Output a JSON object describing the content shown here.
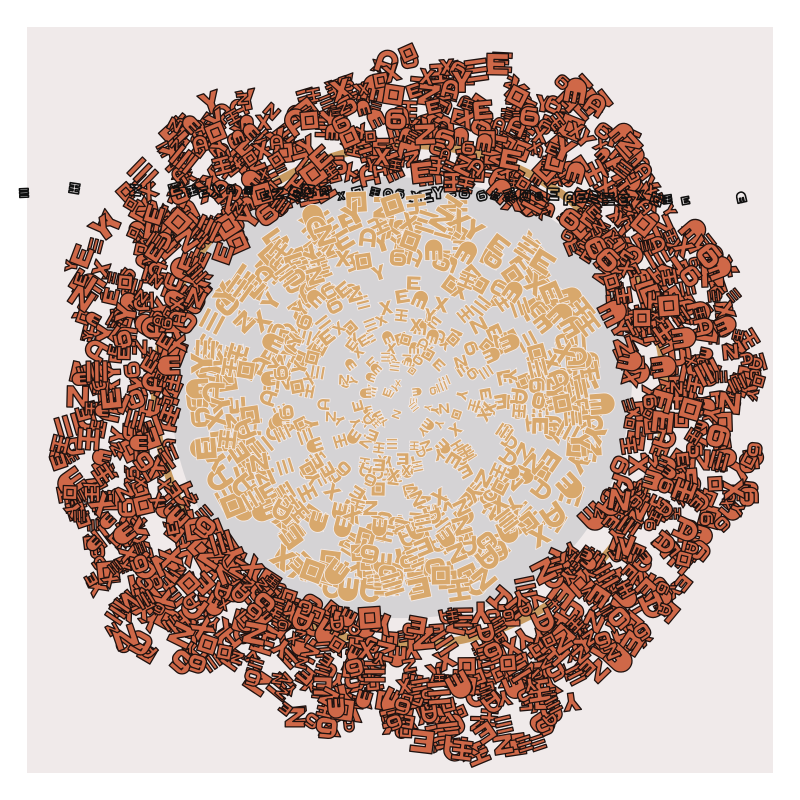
{
  "artwork": {
    "palette": {
      "page_background": "#ffffff",
      "paper": "#f0eaea",
      "inner_disc": "#d5d3d5",
      "outer_glyph_fill": "#cf6848",
      "outer_glyph_stroke": "#1e1210",
      "inner_glyph_fill": "#d8a86c",
      "ring_stroke": "#c89a60",
      "band_glyph": "#101010"
    },
    "glyph_set": [
      "rect",
      "e",
      "a",
      "x",
      "y",
      "six",
      "h",
      "z",
      "ii",
      "m"
    ]
  }
}
